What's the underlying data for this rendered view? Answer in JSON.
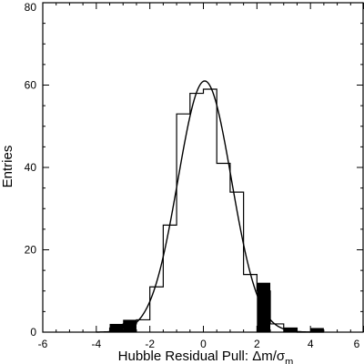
{
  "chart_data": {
    "type": "bar",
    "xlabel": "Hubble Residual Pull: Δm/σ",
    "xlabel_subscript": "m",
    "ylabel": "Entries",
    "xlim": [
      -6,
      6
    ],
    "ylim": [
      0,
      80
    ],
    "x_ticks": [
      "-6",
      "-4",
      "-2",
      "0",
      "2",
      "4",
      "6"
    ],
    "y_ticks": [
      "0",
      "20",
      "40",
      "60",
      "80"
    ],
    "bin_edges": [
      -3.5,
      -3.0,
      -2.5,
      -2.0,
      -1.5,
      -1.0,
      -0.5,
      0.0,
      0.5,
      1.0,
      1.5,
      2.0,
      2.5,
      3.0,
      3.5,
      4.0,
      4.5
    ],
    "series": [
      {
        "style": "outline histogram",
        "color": "#000000",
        "values": [
          1,
          2,
          3,
          11,
          26,
          53,
          58,
          59,
          41,
          34,
          14,
          10,
          2,
          1,
          0,
          0
        ]
      },
      {
        "style": "filled histogram",
        "color": "#000000",
        "values": [
          2,
          3,
          0,
          0,
          0,
          0,
          0,
          0,
          0,
          0,
          0,
          12,
          0,
          1,
          0,
          1
        ]
      }
    ],
    "gaussian_fit": {
      "amplitude": 61,
      "mean": 0.05,
      "sigma": 1.0
    },
    "grid": false,
    "legend": "none"
  }
}
